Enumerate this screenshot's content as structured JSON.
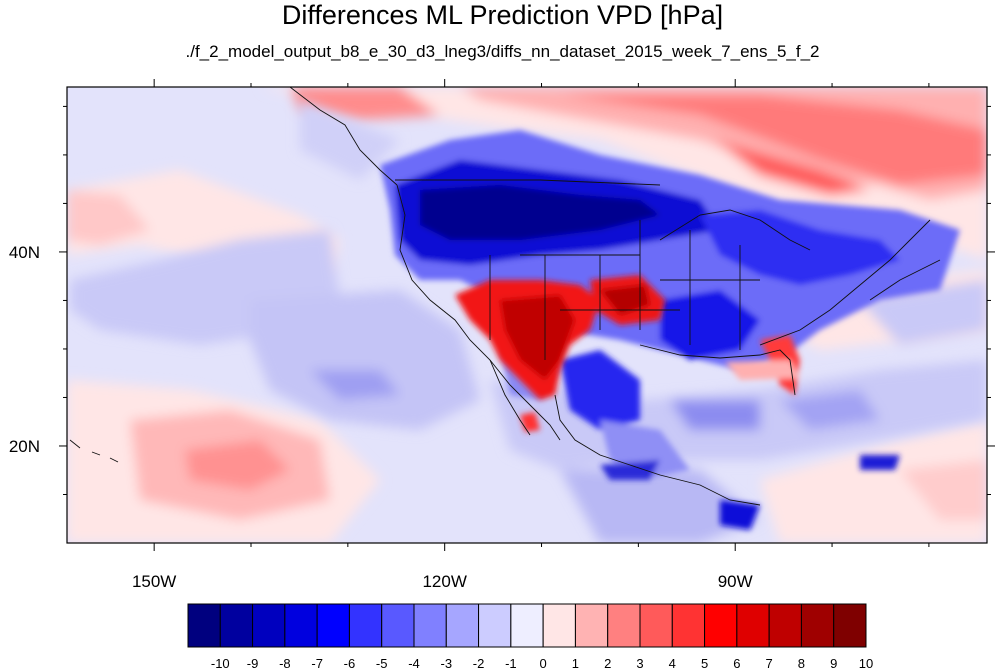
{
  "title": "Differences ML Prediction VPD [hPa]",
  "subtitle": "./f_2_model_output_b8_e_30_d3_lneg3/diffs_nn_dataset_2015_week_7_ens_5_f_2",
  "map": {
    "lon_range": [
      -159,
      -64
    ],
    "lat_range": [
      10,
      57
    ],
    "lon_ticks": [
      {
        "value": -150,
        "label": "150W"
      },
      {
        "value": -120,
        "label": "120W"
      },
      {
        "value": -90,
        "label": "90W"
      }
    ],
    "lat_ticks": [
      {
        "value": 40,
        "label": "40N"
      },
      {
        "value": 20,
        "label": "20N"
      }
    ]
  },
  "colorbar": {
    "labels": [
      "-10",
      "-9",
      "-8",
      "-7",
      "-6",
      "-5",
      "-4",
      "-3",
      "-2",
      "-1",
      "0",
      "1",
      "2",
      "3",
      "4",
      "5",
      "6",
      "7",
      "8",
      "9",
      "10"
    ],
    "colors": [
      "#00007f",
      "#00009f",
      "#0000bf",
      "#0000df",
      "#0000ff",
      "#3333ff",
      "#5959ff",
      "#8080ff",
      "#a6a6ff",
      "#ccccff",
      "#eeeeff",
      "#ffe6e6",
      "#ffb3b3",
      "#ff8080",
      "#ff5a5a",
      "#ff3333",
      "#ff0000",
      "#df0000",
      "#bf0000",
      "#9f0000",
      "#7f0000"
    ]
  }
}
